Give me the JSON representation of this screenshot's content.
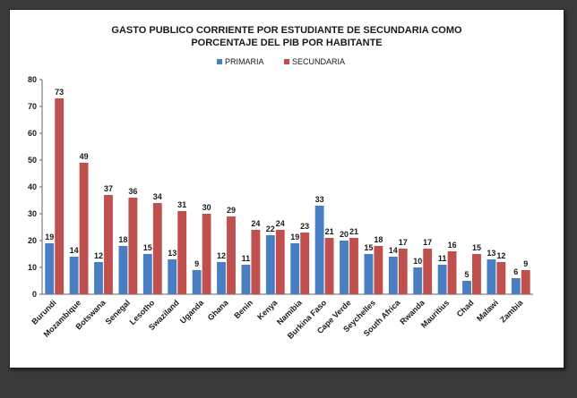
{
  "chart_data": {
    "type": "bar",
    "title_lines": [
      "GASTO PUBLICO CORRIENTE POR ESTUDIANTE DE SECUNDARIA COMO",
      "PORCENTAJE DEL PIB POR HABITANTE"
    ],
    "categories": [
      "Burundi",
      "Mozambique",
      "Botswana",
      "Senegal",
      "Lesotho",
      "Swaziland",
      "Uganda",
      "Ghana",
      "Benin",
      "Kenya",
      "Namibia",
      "Burkina Faso",
      "Cape Verde",
      "Seychelles",
      "South Africa",
      "Rwanda",
      "Mauritius",
      "Chad",
      "Malawi",
      "Zambia"
    ],
    "series": [
      {
        "name": "PRIMARIA",
        "color": "#4a7ec2",
        "values": [
          19,
          14,
          12,
          18,
          15,
          13,
          9,
          12,
          11,
          22,
          19,
          33,
          20,
          15,
          14,
          10,
          11,
          5,
          13,
          6
        ]
      },
      {
        "name": "SECUNDARIA",
        "color": "#c0504d",
        "values": [
          73,
          49,
          37,
          36,
          34,
          31,
          30,
          29,
          24,
          24,
          23,
          21,
          21,
          18,
          17,
          17,
          16,
          15,
          12,
          9
        ]
      }
    ],
    "ylim": [
      0,
      80
    ],
    "yticks": [
      0,
      10,
      20,
      30,
      40,
      50,
      60,
      70,
      80
    ],
    "legend_position": "top-center",
    "grid": false
  }
}
